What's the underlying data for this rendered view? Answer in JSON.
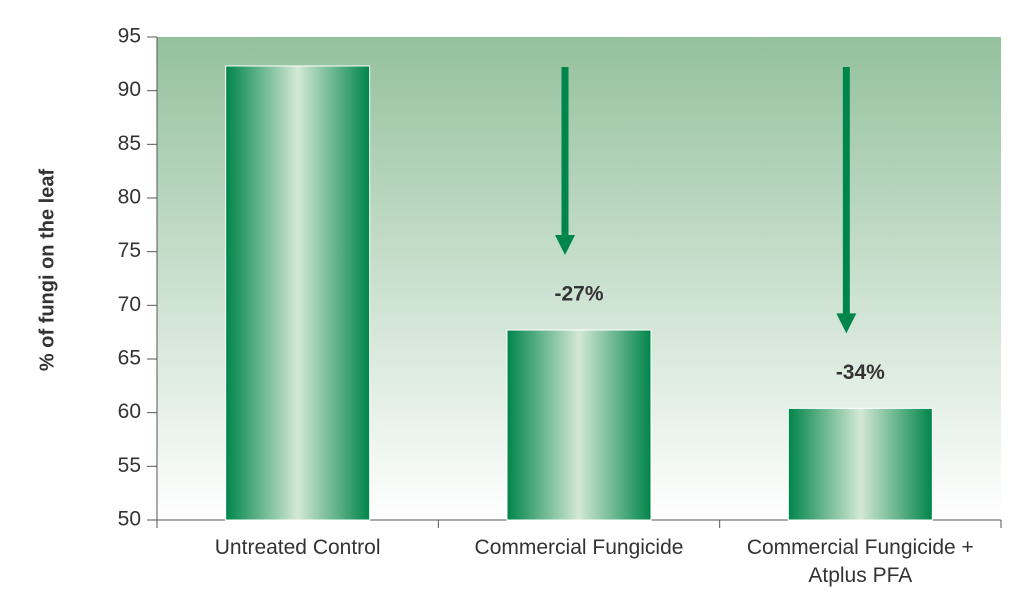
{
  "chart_data": {
    "type": "bar",
    "y_label": "% of fungi on the leaf",
    "categories": [
      "Untreated Control",
      "Commercial Fungicide",
      "Commercial Fungicide + Atplus PFA"
    ],
    "values": [
      92.3,
      67.7,
      60.4
    ],
    "color": "#00854a",
    "annotations": [
      "-27%",
      "-34%"
    ],
    "ylim": [
      50,
      95
    ],
    "yticks": [
      50,
      55,
      60,
      65,
      70,
      75,
      80,
      85,
      90,
      95
    ],
    "grid": false
  }
}
